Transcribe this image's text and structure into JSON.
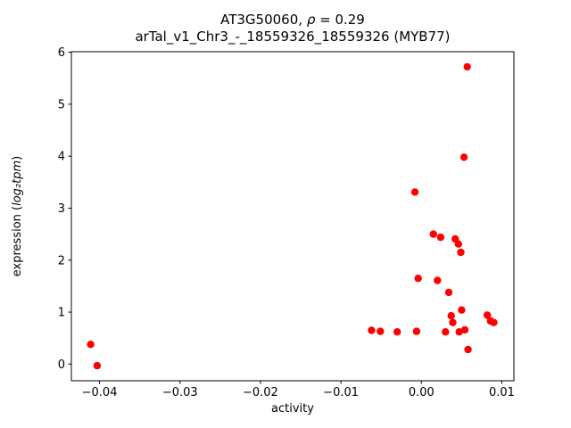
{
  "chart_data": {
    "type": "scatter",
    "title": "AT3G50060, ρ = 0.29",
    "title_parts": {
      "prefix": "AT3G50060, ",
      "rho": "ρ",
      "suffix": " = 0.29"
    },
    "subtitle": "arTal_v1_Chr3_-_18559326_18559326 (MYB77)",
    "xlabel": "activity",
    "ylabel": "expression (log₂tpm)",
    "ylabel_parts": {
      "prefix": "expression (",
      "math": "log₂tpm",
      "suffix": ")"
    },
    "xlim": [
      -0.0435,
      0.0115
    ],
    "ylim": [
      -0.32,
      6.01
    ],
    "grid": false,
    "legend": "none",
    "marker_color": "#ff0000",
    "axis_color": "#000000",
    "background_color": "#ffffff",
    "xticks": {
      "values": [
        -0.04,
        -0.03,
        -0.02,
        -0.01,
        0.0,
        0.01
      ],
      "labels": [
        "−0.04",
        "−0.03",
        "−0.02",
        "−0.01",
        "0.00",
        "0.01"
      ]
    },
    "yticks": {
      "values": [
        0,
        1,
        2,
        3,
        4,
        5,
        6
      ],
      "labels": [
        "0",
        "1",
        "2",
        "3",
        "4",
        "5",
        "6"
      ]
    },
    "points": [
      [
        -0.0411,
        0.38
      ],
      [
        -0.0403,
        -0.03
      ],
      [
        -0.0062,
        0.65
      ],
      [
        -0.0051,
        0.63
      ],
      [
        -0.003,
        0.62
      ],
      [
        -0.0006,
        0.63
      ],
      [
        -0.0008,
        3.31
      ],
      [
        -0.0004,
        1.65
      ],
      [
        0.0015,
        2.5
      ],
      [
        0.0024,
        2.44
      ],
      [
        0.002,
        1.61
      ],
      [
        0.003,
        0.62
      ],
      [
        0.0034,
        1.38
      ],
      [
        0.0037,
        0.93
      ],
      [
        0.0039,
        0.8
      ],
      [
        0.0042,
        2.41
      ],
      [
        0.0046,
        2.31
      ],
      [
        0.0049,
        2.15
      ],
      [
        0.0047,
        0.62
      ],
      [
        0.005,
        1.04
      ],
      [
        0.0053,
        3.98
      ],
      [
        0.0057,
        5.72
      ],
      [
        0.0054,
        0.66
      ],
      [
        0.0058,
        0.28
      ],
      [
        0.0082,
        0.94
      ],
      [
        0.0086,
        0.83
      ],
      [
        0.009,
        0.8
      ]
    ]
  }
}
